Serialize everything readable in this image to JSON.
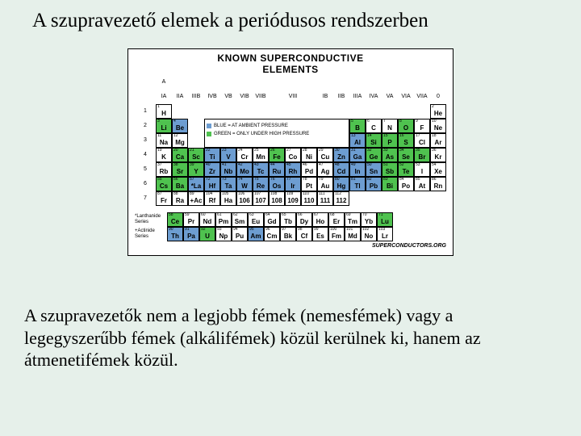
{
  "title": "A szupravezető elemek a periódusos rendszerben",
  "chart": {
    "heading_l1": "KNOWN SUPERCONDUCTIVE",
    "heading_l2": "ELEMENTS",
    "legend_blue": "BLUE = AT AMBIENT PRESSURE",
    "legend_green": "GREEN = ONLY UNDER HIGH PRESSURE",
    "colors": {
      "blue": "#6d9dd1",
      "green": "#4fc24f",
      "plain": "#ffffff",
      "bg": "#e6f0ea"
    },
    "col_headers": [
      "A",
      "",
      "",
      "",
      "",
      "",
      "",
      "",
      "",
      "",
      "",
      "",
      "",
      "",
      "",
      "",
      "",
      ""
    ],
    "sub_col_headers": [
      "IA",
      "IIA",
      "IIIB",
      "IVB",
      "VB",
      "VIB",
      "VIIB",
      "",
      "VIII",
      "",
      "IB",
      "IIB",
      "IIIA",
      "IVA",
      "VA",
      "VIA",
      "VIIA",
      "0"
    ],
    "rows": [
      [
        {
          "z": "1",
          "s": "H",
          "c": "plain"
        },
        null,
        null,
        null,
        null,
        null,
        null,
        null,
        null,
        null,
        null,
        null,
        null,
        null,
        null,
        null,
        null,
        {
          "z": "2",
          "s": "He",
          "c": "plain"
        }
      ],
      [
        {
          "z": "3",
          "s": "Li",
          "c": "green"
        },
        {
          "z": "4",
          "s": "Be",
          "c": "blue"
        },
        null,
        null,
        null,
        null,
        null,
        null,
        null,
        null,
        null,
        null,
        {
          "z": "5",
          "s": "B",
          "c": "green"
        },
        {
          "z": "6",
          "s": "C",
          "c": "plain"
        },
        {
          "z": "7",
          "s": "N",
          "c": "plain"
        },
        {
          "z": "8",
          "s": "O",
          "c": "green"
        },
        {
          "z": "9",
          "s": "F",
          "c": "plain"
        },
        {
          "z": "10",
          "s": "Ne",
          "c": "plain"
        }
      ],
      [
        {
          "z": "11",
          "s": "Na",
          "c": "plain"
        },
        {
          "z": "12",
          "s": "Mg",
          "c": "plain"
        },
        null,
        null,
        null,
        null,
        null,
        null,
        null,
        null,
        null,
        null,
        {
          "z": "13",
          "s": "Al",
          "c": "blue"
        },
        {
          "z": "14",
          "s": "Si",
          "c": "green"
        },
        {
          "z": "15",
          "s": "P",
          "c": "green"
        },
        {
          "z": "16",
          "s": "S",
          "c": "green"
        },
        {
          "z": "17",
          "s": "Cl",
          "c": "plain"
        },
        {
          "z": "18",
          "s": "Ar",
          "c": "plain"
        }
      ],
      [
        {
          "z": "19",
          "s": "K",
          "c": "plain"
        },
        {
          "z": "20",
          "s": "Ca",
          "c": "green"
        },
        {
          "z": "21",
          "s": "Sc",
          "c": "green"
        },
        {
          "z": "22",
          "s": "Ti",
          "c": "blue"
        },
        {
          "z": "23",
          "s": "V",
          "c": "blue"
        },
        {
          "z": "24",
          "s": "Cr",
          "c": "plain"
        },
        {
          "z": "25",
          "s": "Mn",
          "c": "plain"
        },
        {
          "z": "26",
          "s": "Fe",
          "c": "green"
        },
        {
          "z": "27",
          "s": "Co",
          "c": "plain"
        },
        {
          "z": "28",
          "s": "Ni",
          "c": "plain"
        },
        {
          "z": "29",
          "s": "Cu",
          "c": "plain"
        },
        {
          "z": "30",
          "s": "Zn",
          "c": "blue"
        },
        {
          "z": "31",
          "s": "Ga",
          "c": "blue"
        },
        {
          "z": "32",
          "s": "Ge",
          "c": "green"
        },
        {
          "z": "33",
          "s": "As",
          "c": "green"
        },
        {
          "z": "34",
          "s": "Se",
          "c": "green"
        },
        {
          "z": "35",
          "s": "Br",
          "c": "green"
        },
        {
          "z": "36",
          "s": "Kr",
          "c": "plain"
        }
      ],
      [
        {
          "z": "37",
          "s": "Rb",
          "c": "plain"
        },
        {
          "z": "38",
          "s": "Sr",
          "c": "green"
        },
        {
          "z": "39",
          "s": "Y",
          "c": "green"
        },
        {
          "z": "40",
          "s": "Zr",
          "c": "blue"
        },
        {
          "z": "41",
          "s": "Nb",
          "c": "blue"
        },
        {
          "z": "42",
          "s": "Mo",
          "c": "blue"
        },
        {
          "z": "43",
          "s": "Tc",
          "c": "blue"
        },
        {
          "z": "44",
          "s": "Ru",
          "c": "blue"
        },
        {
          "z": "45",
          "s": "Rh",
          "c": "blue"
        },
        {
          "z": "46",
          "s": "Pd",
          "c": "plain"
        },
        {
          "z": "47",
          "s": "Ag",
          "c": "plain"
        },
        {
          "z": "48",
          "s": "Cd",
          "c": "blue"
        },
        {
          "z": "49",
          "s": "In",
          "c": "blue"
        },
        {
          "z": "50",
          "s": "Sn",
          "c": "blue"
        },
        {
          "z": "51",
          "s": "Sb",
          "c": "green"
        },
        {
          "z": "52",
          "s": "Te",
          "c": "green"
        },
        {
          "z": "53",
          "s": "I",
          "c": "plain"
        },
        {
          "z": "54",
          "s": "Xe",
          "c": "plain"
        }
      ],
      [
        {
          "z": "55",
          "s": "Cs",
          "c": "green"
        },
        {
          "z": "56",
          "s": "Ba",
          "c": "green"
        },
        {
          "z": "57",
          "s": "*La",
          "c": "blue"
        },
        {
          "z": "72",
          "s": "Hf",
          "c": "blue"
        },
        {
          "z": "73",
          "s": "Ta",
          "c": "blue"
        },
        {
          "z": "74",
          "s": "W",
          "c": "blue"
        },
        {
          "z": "75",
          "s": "Re",
          "c": "blue"
        },
        {
          "z": "76",
          "s": "Os",
          "c": "blue"
        },
        {
          "z": "77",
          "s": "Ir",
          "c": "blue"
        },
        {
          "z": "78",
          "s": "Pt",
          "c": "plain"
        },
        {
          "z": "79",
          "s": "Au",
          "c": "plain"
        },
        {
          "z": "80",
          "s": "Hg",
          "c": "blue"
        },
        {
          "z": "81",
          "s": "Tl",
          "c": "blue"
        },
        {
          "z": "82",
          "s": "Pb",
          "c": "blue"
        },
        {
          "z": "83",
          "s": "Bi",
          "c": "green"
        },
        {
          "z": "84",
          "s": "Po",
          "c": "plain"
        },
        {
          "z": "85",
          "s": "At",
          "c": "plain"
        },
        {
          "z": "86",
          "s": "Rn",
          "c": "plain"
        }
      ],
      [
        {
          "z": "87",
          "s": "Fr",
          "c": "plain"
        },
        {
          "z": "88",
          "s": "Ra",
          "c": "plain"
        },
        {
          "z": "89",
          "s": "+Ac",
          "c": "plain"
        },
        {
          "z": "104",
          "s": "Rf",
          "c": "plain"
        },
        {
          "z": "105",
          "s": "Ha",
          "c": "plain"
        },
        {
          "z": "106",
          "s": "106",
          "c": "plain"
        },
        {
          "z": "107",
          "s": "107",
          "c": "plain"
        },
        {
          "z": "108",
          "s": "108",
          "c": "plain"
        },
        {
          "z": "109",
          "s": "109",
          "c": "plain"
        },
        {
          "z": "110",
          "s": "110",
          "c": "plain"
        },
        {
          "z": "111",
          "s": "111",
          "c": "plain"
        },
        {
          "z": "112",
          "s": "112",
          "c": "plain"
        },
        null,
        null,
        null,
        null,
        null,
        null
      ]
    ],
    "lan_label": "*Lanthanide Series",
    "act_label": "+Actinide Series",
    "lan": [
      {
        "z": "58",
        "s": "Ce",
        "c": "green"
      },
      {
        "z": "59",
        "s": "Pr",
        "c": "plain"
      },
      {
        "z": "60",
        "s": "Nd",
        "c": "plain"
      },
      {
        "z": "61",
        "s": "Pm",
        "c": "plain"
      },
      {
        "z": "62",
        "s": "Sm",
        "c": "plain"
      },
      {
        "z": "63",
        "s": "Eu",
        "c": "plain"
      },
      {
        "z": "64",
        "s": "Gd",
        "c": "plain"
      },
      {
        "z": "65",
        "s": "Tb",
        "c": "plain"
      },
      {
        "z": "66",
        "s": "Dy",
        "c": "plain"
      },
      {
        "z": "67",
        "s": "Ho",
        "c": "plain"
      },
      {
        "z": "68",
        "s": "Er",
        "c": "plain"
      },
      {
        "z": "69",
        "s": "Tm",
        "c": "plain"
      },
      {
        "z": "70",
        "s": "Yb",
        "c": "plain"
      },
      {
        "z": "71",
        "s": "Lu",
        "c": "green"
      }
    ],
    "act": [
      {
        "z": "90",
        "s": "Th",
        "c": "blue"
      },
      {
        "z": "91",
        "s": "Pa",
        "c": "blue"
      },
      {
        "z": "92",
        "s": "U",
        "c": "green"
      },
      {
        "z": "93",
        "s": "Np",
        "c": "plain"
      },
      {
        "z": "94",
        "s": "Pu",
        "c": "plain"
      },
      {
        "z": "95",
        "s": "Am",
        "c": "blue"
      },
      {
        "z": "96",
        "s": "Cm",
        "c": "plain"
      },
      {
        "z": "97",
        "s": "Bk",
        "c": "plain"
      },
      {
        "z": "98",
        "s": "Cf",
        "c": "plain"
      },
      {
        "z": "99",
        "s": "Es",
        "c": "plain"
      },
      {
        "z": "100",
        "s": "Fm",
        "c": "plain"
      },
      {
        "z": "101",
        "s": "Md",
        "c": "plain"
      },
      {
        "z": "102",
        "s": "No",
        "c": "plain"
      },
      {
        "z": "103",
        "s": "Lr",
        "c": "plain"
      }
    ],
    "source": "SUPERCONDUCTORS.ORG"
  },
  "body_text": "A szupravezetők nem a legjobb fémek (nemesfémek) vagy a legegyszerűbb fémek (alkálifémek) közül kerülnek ki, hanem az átmenetifémek közül."
}
